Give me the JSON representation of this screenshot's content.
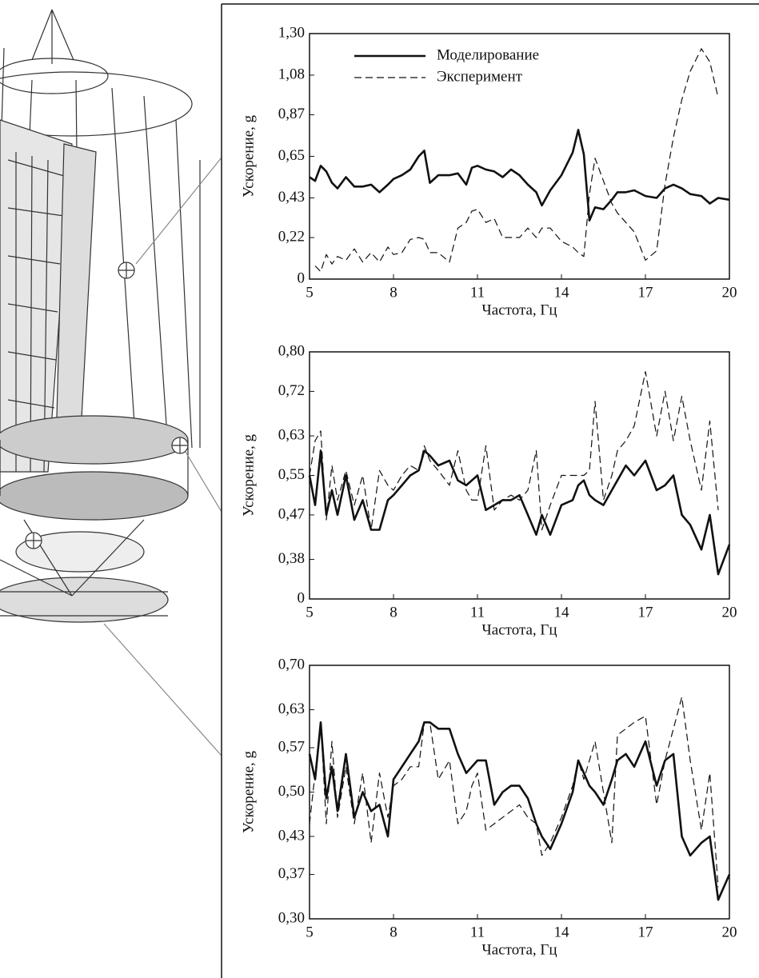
{
  "chart_data": [
    {
      "type": "line",
      "xlabel": "Частота, Гц",
      "ylabel": "Ускорение, g",
      "legend": true,
      "legend_position": "upper left",
      "xlim": [
        5,
        20
      ],
      "xticks": [
        5,
        8,
        11,
        14,
        17,
        20
      ],
      "ylim": [
        0,
        1.3
      ],
      "yticks": [
        0,
        {
          "value": 0.22,
          "label": "0,22"
        },
        {
          "value": 0.43,
          "label": "0,43"
        },
        {
          "value": 0.65,
          "label": "0,65"
        },
        {
          "value": 0.87,
          "label": "0,87"
        },
        {
          "value": 1.08,
          "label": "1,08"
        },
        {
          "value": 1.3,
          "label": "1,30"
        }
      ],
      "x": [
        5,
        5.2,
        5.4,
        5.6,
        5.8,
        6,
        6.3,
        6.6,
        6.9,
        7.2,
        7.5,
        7.8,
        8,
        8.3,
        8.6,
        8.9,
        9.1,
        9.3,
        9.6,
        10,
        10.3,
        10.6,
        10.8,
        11,
        11.3,
        11.6,
        11.9,
        12.2,
        12.5,
        12.8,
        13.1,
        13.3,
        13.6,
        14,
        14.4,
        14.6,
        14.8,
        15,
        15.2,
        15.5,
        15.8,
        16,
        16.3,
        16.6,
        17,
        17.4,
        17.7,
        18,
        18.3,
        18.6,
        19,
        19.3,
        19.6,
        20
      ],
      "series": [
        {
          "name": "Моделирование",
          "color": "#111111",
          "dashed": false,
          "values": [
            0.54,
            0.52,
            0.6,
            0.57,
            0.51,
            0.48,
            0.54,
            0.49,
            0.49,
            0.5,
            0.46,
            0.5,
            0.53,
            0.55,
            0.58,
            0.65,
            0.68,
            0.51,
            0.55,
            0.55,
            0.56,
            0.5,
            0.59,
            0.6,
            0.58,
            0.57,
            0.54,
            0.58,
            0.55,
            0.5,
            0.46,
            0.39,
            0.47,
            0.55,
            0.67,
            0.79,
            0.66,
            0.31,
            0.38,
            0.37,
            0.42,
            0.46,
            0.46,
            0.47,
            0.44,
            0.43,
            0.48,
            0.5,
            0.48,
            0.45,
            0.44,
            0.4,
            0.43,
            0.42
          ]
        },
        {
          "name": "Эксперимент",
          "color": "#111111",
          "dashed": true,
          "values": [
            null,
            0.07,
            0.04,
            0.13,
            0.08,
            0.12,
            0.1,
            0.16,
            0.09,
            0.14,
            0.09,
            0.17,
            0.13,
            0.14,
            0.21,
            0.22,
            0.21,
            0.14,
            0.14,
            0.09,
            0.27,
            0.3,
            0.36,
            0.37,
            0.3,
            0.32,
            0.22,
            0.22,
            0.22,
            0.27,
            0.22,
            0.27,
            0.27,
            0.2,
            0.17,
            0.14,
            0.12,
            0.45,
            0.64,
            0.52,
            0.4,
            0.35,
            0.3,
            0.25,
            0.1,
            0.15,
            0.5,
            0.75,
            0.95,
            1.1,
            1.22,
            1.15,
            0.96,
            null
          ]
        }
      ]
    },
    {
      "type": "line",
      "xlabel": "Частота, Гц",
      "ylabel": "Ускорение, g",
      "legend": false,
      "xlim": [
        5,
        20
      ],
      "xticks": [
        5,
        8,
        11,
        14,
        17,
        20
      ],
      "ylim": [
        0,
        0.8
      ],
      "ybreak": 0.3,
      "yticks": [
        0,
        {
          "value": 0.38,
          "label": "0,38"
        },
        {
          "value": 0.47,
          "label": "0,47"
        },
        {
          "value": 0.55,
          "label": "0,55"
        },
        {
          "value": 0.63,
          "label": "0,63"
        },
        {
          "value": 0.72,
          "label": "0,72"
        },
        {
          "value": 0.8,
          "label": "0,80"
        }
      ],
      "x": [
        5,
        5.2,
        5.4,
        5.6,
        5.8,
        6,
        6.3,
        6.6,
        6.9,
        7.2,
        7.5,
        7.8,
        8,
        8.3,
        8.6,
        8.9,
        9.1,
        9.3,
        9.6,
        10,
        10.3,
        10.6,
        10.8,
        11,
        11.3,
        11.6,
        11.9,
        12.2,
        12.5,
        12.8,
        13.1,
        13.3,
        13.6,
        14,
        14.4,
        14.6,
        14.8,
        15,
        15.2,
        15.5,
        15.8,
        16,
        16.3,
        16.6,
        17,
        17.4,
        17.7,
        18,
        18.3,
        18.6,
        19,
        19.3,
        19.6,
        20
      ],
      "series": [
        {
          "color": "#111111",
          "dashed": false,
          "values": [
            0.55,
            0.49,
            0.6,
            0.47,
            0.52,
            0.47,
            0.55,
            0.46,
            0.5,
            0.44,
            0.44,
            0.5,
            0.51,
            0.53,
            0.55,
            0.56,
            0.6,
            0.59,
            0.57,
            0.58,
            0.54,
            0.53,
            0.54,
            0.55,
            0.48,
            0.49,
            0.5,
            0.5,
            0.51,
            0.47,
            0.43,
            0.47,
            0.43,
            0.49,
            0.5,
            0.53,
            0.54,
            0.51,
            0.5,
            0.49,
            0.52,
            0.54,
            0.57,
            0.55,
            0.58,
            0.52,
            0.53,
            0.55,
            0.47,
            0.45,
            0.4,
            0.47,
            0.35,
            0.41
          ]
        },
        {
          "color": "#111111",
          "dashed": true,
          "values": [
            0.55,
            0.62,
            0.64,
            0.46,
            0.57,
            0.5,
            0.56,
            0.49,
            0.55,
            0.44,
            0.56,
            0.53,
            0.52,
            0.55,
            0.57,
            0.56,
            0.61,
            0.58,
            0.56,
            0.53,
            0.6,
            0.52,
            0.5,
            0.5,
            0.61,
            0.48,
            0.5,
            0.51,
            0.5,
            0.52,
            0.6,
            0.44,
            0.49,
            0.55,
            0.55,
            0.55,
            0.55,
            0.56,
            0.7,
            0.5,
            0.55,
            0.6,
            0.62,
            0.65,
            0.76,
            0.63,
            0.72,
            0.62,
            0.71,
            0.62,
            0.52,
            0.66,
            0.48,
            null
          ]
        }
      ]
    },
    {
      "type": "line",
      "xlabel": "Частота, Гц",
      "ylabel": "Ускорение, g",
      "legend": false,
      "xlim": [
        5,
        20
      ],
      "xticks": [
        5,
        8,
        11,
        14,
        17,
        20
      ],
      "ylim": [
        0.3,
        0.7
      ],
      "yticks": [
        {
          "value": 0.3,
          "label": "0,30"
        },
        {
          "value": 0.37,
          "label": "0,37"
        },
        {
          "value": 0.43,
          "label": "0,43"
        },
        {
          "value": 0.5,
          "label": "0,50"
        },
        {
          "value": 0.57,
          "label": "0,57"
        },
        {
          "value": 0.63,
          "label": "0,63"
        },
        {
          "value": 0.7,
          "label": "0,70"
        }
      ],
      "x": [
        5,
        5.2,
        5.4,
        5.6,
        5.8,
        6,
        6.3,
        6.6,
        6.9,
        7.2,
        7.5,
        7.8,
        8,
        8.3,
        8.6,
        8.9,
        9.1,
        9.3,
        9.6,
        10,
        10.3,
        10.6,
        10.8,
        11,
        11.3,
        11.6,
        11.9,
        12.2,
        12.5,
        12.8,
        13.1,
        13.3,
        13.6,
        14,
        14.4,
        14.6,
        14.8,
        15,
        15.2,
        15.5,
        15.8,
        16,
        16.3,
        16.6,
        17,
        17.4,
        17.7,
        18,
        18.3,
        18.6,
        19,
        19.3,
        19.6,
        20
      ],
      "series": [
        {
          "color": "#111111",
          "dashed": false,
          "values": [
            0.56,
            0.52,
            0.61,
            0.49,
            0.54,
            0.47,
            0.56,
            0.46,
            0.5,
            0.47,
            0.48,
            0.43,
            0.52,
            0.54,
            0.56,
            0.58,
            0.61,
            0.61,
            0.6,
            0.6,
            0.56,
            0.53,
            0.54,
            0.55,
            0.55,
            0.48,
            0.5,
            0.51,
            0.51,
            0.49,
            0.45,
            0.43,
            0.41,
            0.45,
            0.5,
            0.55,
            0.53,
            0.51,
            0.5,
            0.48,
            0.52,
            0.55,
            0.56,
            0.54,
            0.58,
            0.51,
            0.55,
            0.56,
            0.43,
            0.4,
            0.42,
            0.43,
            0.33,
            0.37
          ]
        },
        {
          "color": "#111111",
          "dashed": true,
          "values": [
            0.45,
            0.53,
            0.61,
            0.45,
            0.58,
            0.46,
            0.54,
            0.45,
            0.53,
            0.42,
            0.53,
            0.46,
            0.51,
            0.52,
            0.54,
            0.54,
            0.61,
            0.61,
            0.52,
            0.55,
            0.45,
            0.47,
            0.51,
            0.53,
            0.44,
            0.45,
            0.46,
            0.47,
            0.48,
            0.46,
            0.45,
            0.4,
            0.42,
            0.46,
            0.51,
            0.55,
            0.52,
            0.55,
            0.58,
            0.5,
            0.42,
            0.59,
            0.6,
            0.61,
            0.62,
            0.48,
            0.55,
            0.6,
            0.65,
            0.55,
            0.44,
            0.53,
            0.35,
            null
          ]
        }
      ]
    }
  ]
}
